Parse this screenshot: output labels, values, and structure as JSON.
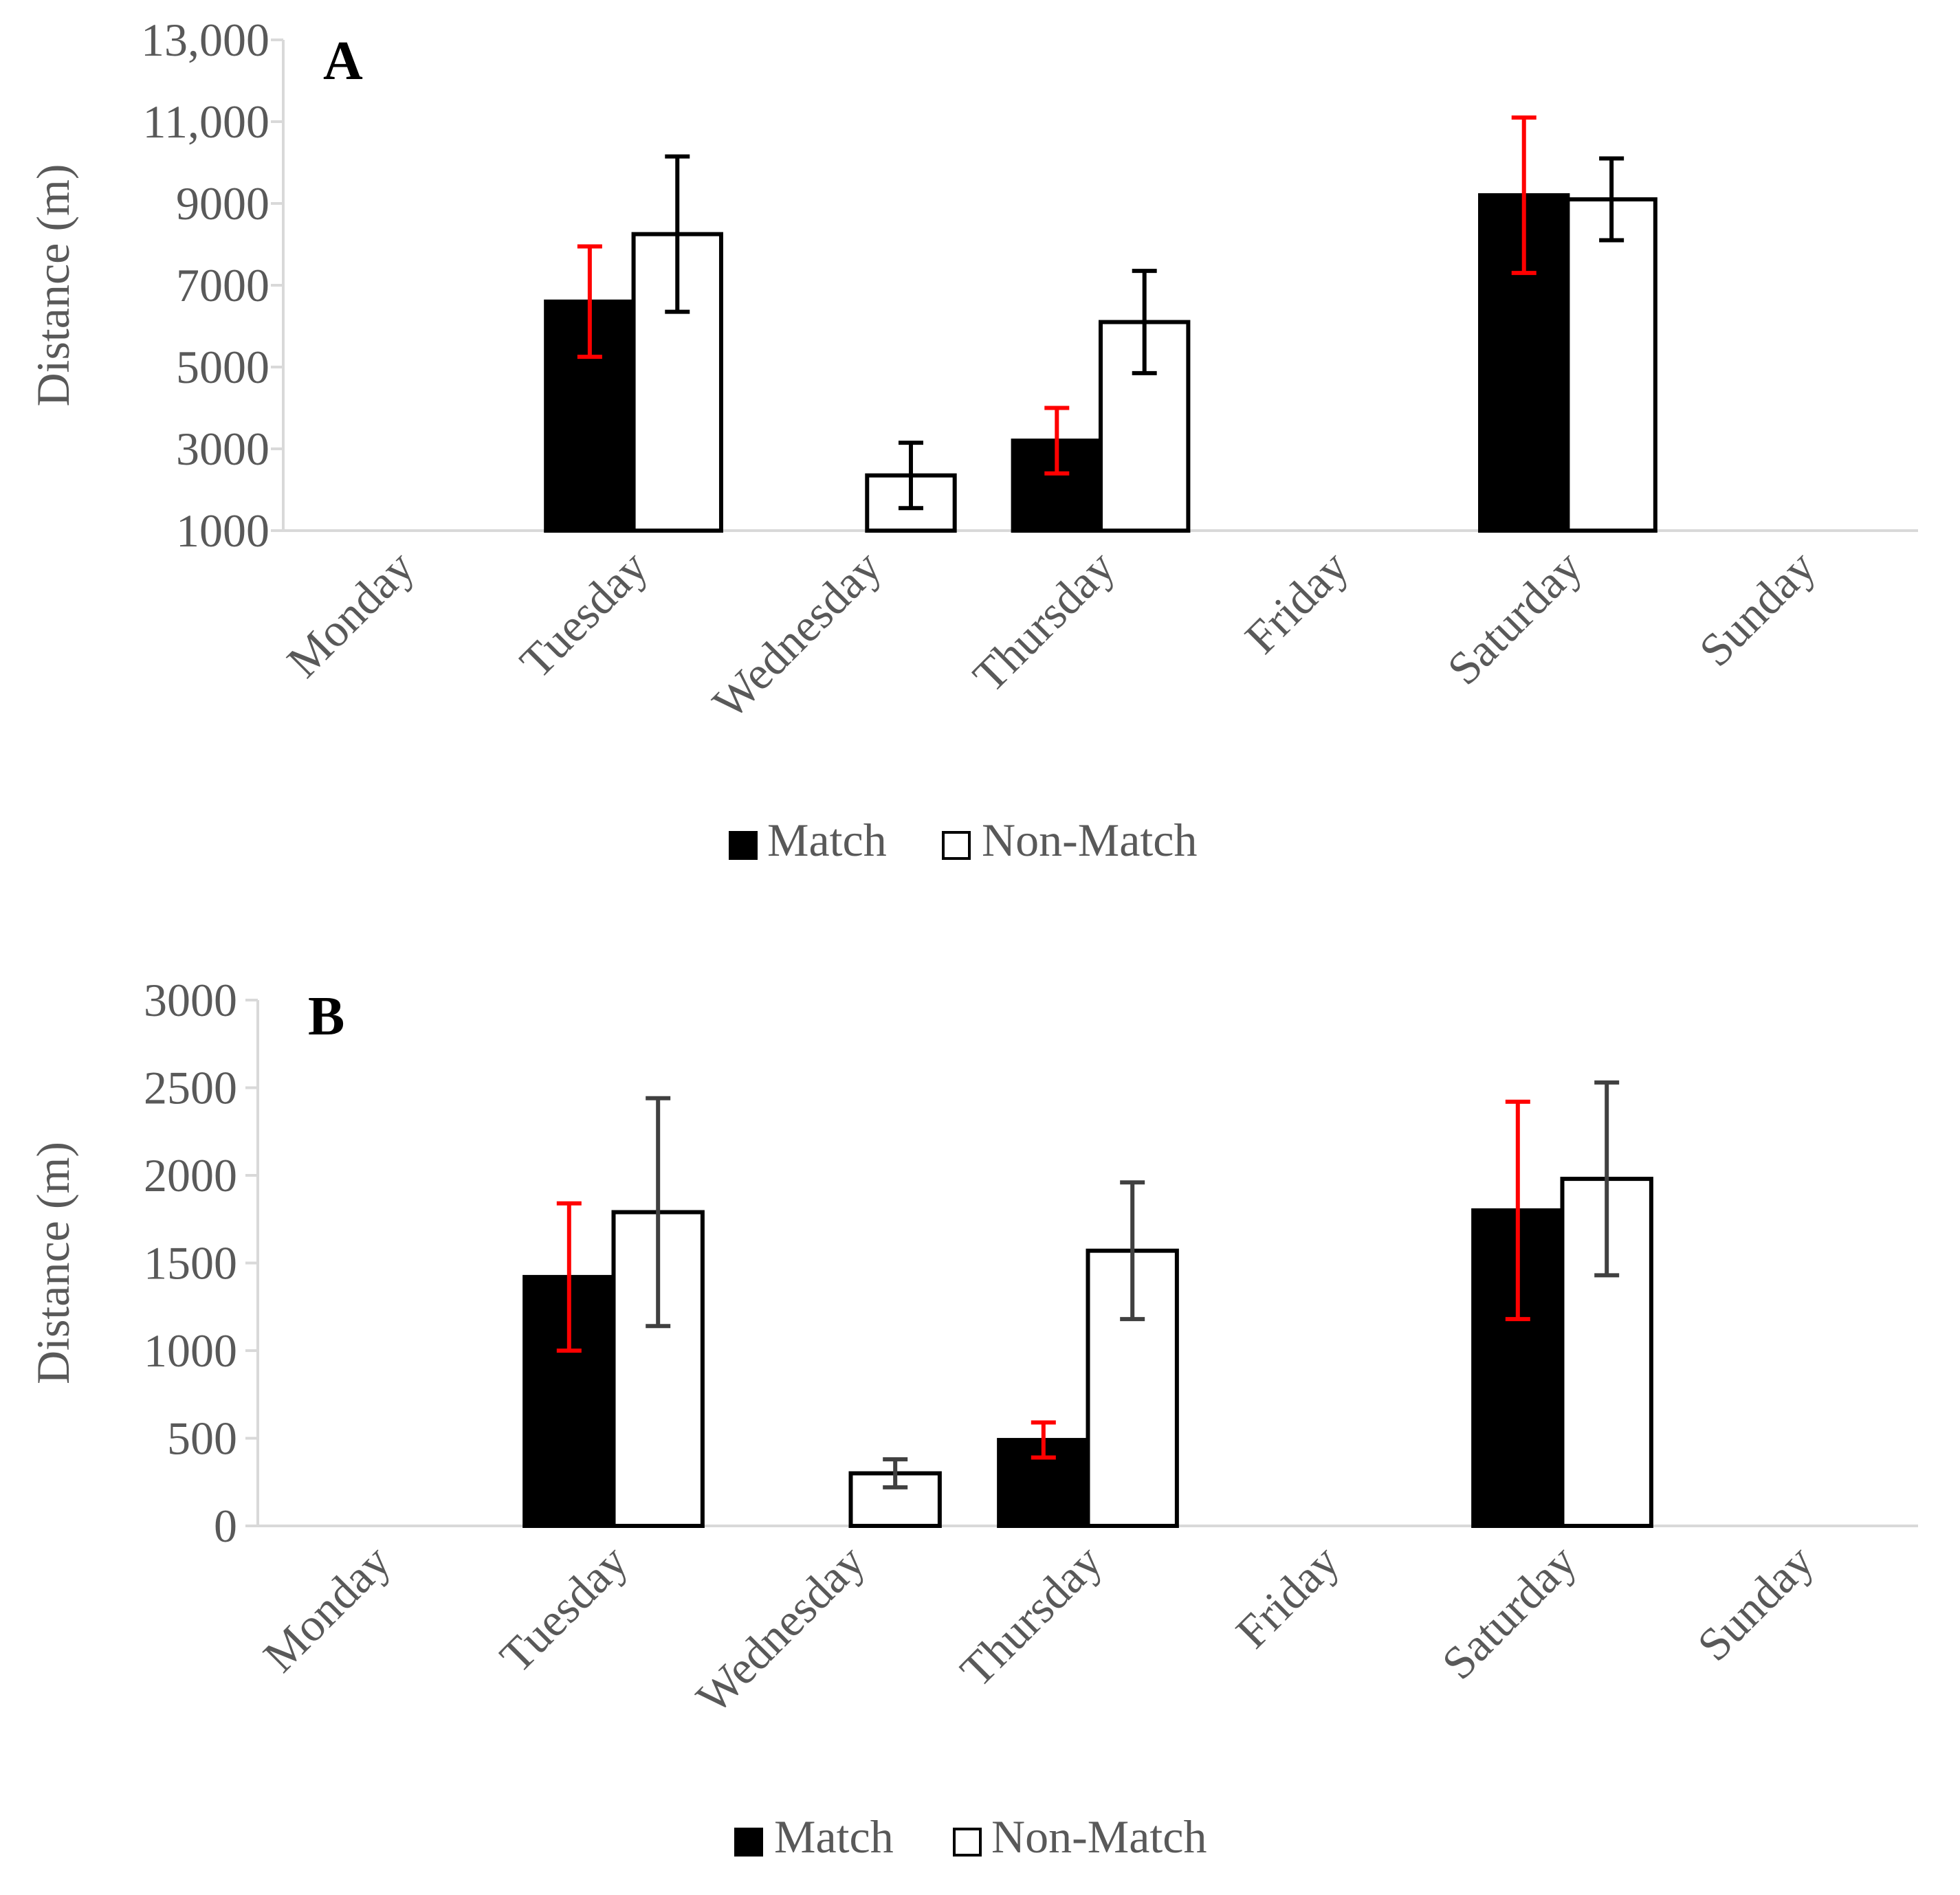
{
  "chart_data": [
    {
      "type": "bar",
      "panel_label": "A",
      "categories": [
        "Monday",
        "Tuesday",
        "Wednesday",
        "Thursday",
        "Friday",
        "Saturday",
        "Sunday"
      ],
      "ylabel": "Distance (m)",
      "xlabel": "",
      "ylim": [
        1000,
        13000
      ],
      "yticks": [
        1000,
        3000,
        5000,
        7000,
        9000,
        11000,
        13000
      ],
      "ytick_labels": [
        "1000",
        "3000",
        "5000",
        "7000",
        "9000",
        "11,000",
        "13,000"
      ],
      "grid": false,
      "legend_position": "bottom",
      "series": [
        {
          "name": "Match",
          "fill": "#000000",
          "error_color": "#ff0000",
          "values": [
            null,
            6600,
            null,
            3200,
            null,
            9200,
            null
          ],
          "errors": [
            null,
            1350,
            null,
            800,
            null,
            1900,
            null
          ]
        },
        {
          "name": "Non-Match",
          "fill": "#ffffff",
          "error_color": "#000000",
          "values": [
            null,
            8250,
            2350,
            6100,
            null,
            9100,
            null
          ],
          "errors": [
            null,
            1900,
            800,
            1250,
            null,
            1000,
            null
          ]
        }
      ]
    },
    {
      "type": "bar",
      "panel_label": "B",
      "categories": [
        "Monday",
        "Tuesday",
        "Wednesday",
        "Thursday",
        "Friday",
        "Saturday",
        "Sunday"
      ],
      "ylabel": "Distance (m)",
      "xlabel": "",
      "ylim": [
        0,
        3000
      ],
      "yticks": [
        0,
        500,
        1000,
        1500,
        2000,
        2500,
        3000
      ],
      "ytick_labels": [
        "0",
        "500",
        "1000",
        "1500",
        "2000",
        "2500",
        "3000"
      ],
      "grid": false,
      "legend_position": "bottom",
      "series": [
        {
          "name": "Match",
          "fill": "#000000",
          "error_color": "#ff0000",
          "values": [
            null,
            1420,
            null,
            490,
            null,
            1800,
            null
          ],
          "errors": [
            null,
            420,
            null,
            100,
            null,
            620,
            null
          ]
        },
        {
          "name": "Non-Match",
          "fill": "#ffffff",
          "error_color": "#404040",
          "values": [
            null,
            1790,
            300,
            1570,
            null,
            1980,
            null
          ],
          "errors": [
            null,
            650,
            80,
            390,
            null,
            550,
            null
          ]
        }
      ]
    }
  ]
}
